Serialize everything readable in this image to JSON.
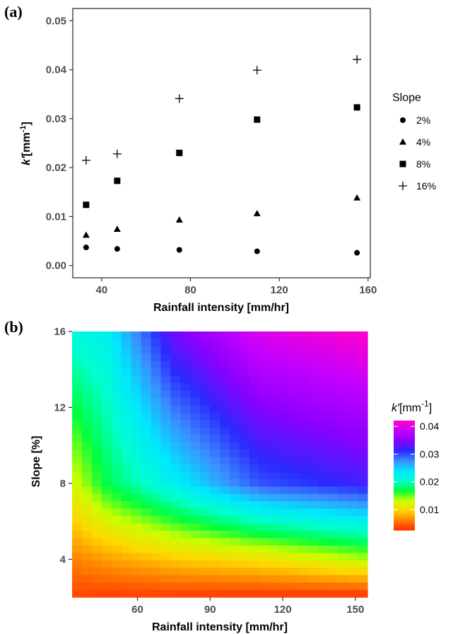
{
  "figure": {
    "panel_a_label": "(a)",
    "panel_b_label": "(b)"
  },
  "chart_data": [
    {
      "type": "scatter",
      "panel": "(a)",
      "xlabel": "Rainfall intensity [mm/hr]",
      "ylabel_symbol": "k′",
      "ylabel_unit": "[mm",
      "ylabel_exp": "-1",
      "ylabel_close": "]",
      "xlim": [
        27,
        161
      ],
      "ylim": [
        -0.0025,
        0.0525
      ],
      "xticks": [
        40,
        80,
        120,
        160
      ],
      "yticks": [
        0.0,
        0.01,
        0.02,
        0.03,
        0.04,
        0.05
      ],
      "ytick_labels": [
        "0.00",
        "0.01",
        "0.02",
        "0.03",
        "0.04",
        "0.05"
      ],
      "grid": false,
      "legend_title": "Slope",
      "legend_position": "right",
      "series": [
        {
          "name": "2%",
          "marker": "circle",
          "x": [
            33,
            47,
            75,
            110,
            155
          ],
          "y": [
            0.0037,
            0.0034,
            0.0032,
            0.0029,
            0.0026
          ]
        },
        {
          "name": "4%",
          "marker": "triangle",
          "x": [
            33,
            47,
            75,
            110,
            155
          ],
          "y": [
            0.0062,
            0.0074,
            0.0093,
            0.0106,
            0.0138
          ]
        },
        {
          "name": "8%",
          "marker": "square",
          "x": [
            33,
            47,
            75,
            110,
            155
          ],
          "y": [
            0.0124,
            0.0173,
            0.023,
            0.0298,
            0.0323
          ]
        },
        {
          "name": "16%",
          "marker": "plus",
          "x": [
            33,
            47,
            75,
            110,
            155
          ],
          "y": [
            0.0215,
            0.0228,
            0.0341,
            0.0399,
            0.0421
          ]
        }
      ]
    },
    {
      "type": "heatmap",
      "panel": "(b)",
      "xlabel": "Rainfall intensity [mm/hr]",
      "ylabel": "Slope [%]",
      "xlim": [
        33,
        155
      ],
      "ylim": [
        2,
        16
      ],
      "xticks": [
        60,
        90,
        120,
        150
      ],
      "yticks": [
        4,
        8,
        12,
        16
      ],
      "value_model": "k'(I, S) interpolated between measured points of panel (a)",
      "colorbar_title_symbol": "k′",
      "colorbar_title_unit": "[mm",
      "colorbar_title_exp": "-1",
      "colorbar_title_close": "]",
      "colorbar_range": [
        0.0026,
        0.0421
      ],
      "colorbar_ticks": [
        0.01,
        0.02,
        0.03,
        0.04
      ],
      "colorbar_tick_labels": [
        "0.01",
        "0.02",
        "0.03",
        "0.04"
      ],
      "colormap": [
        "#ff2a00",
        "#ff8000",
        "#ffd700",
        "#c8ff00",
        "#00ff3c",
        "#00ffcf",
        "#00e6ff",
        "#3c8cff",
        "#2a2aff",
        "#8a00ff",
        "#c400ff",
        "#ff00c8"
      ],
      "grid_rows": 36,
      "grid_cols": 30
    }
  ]
}
